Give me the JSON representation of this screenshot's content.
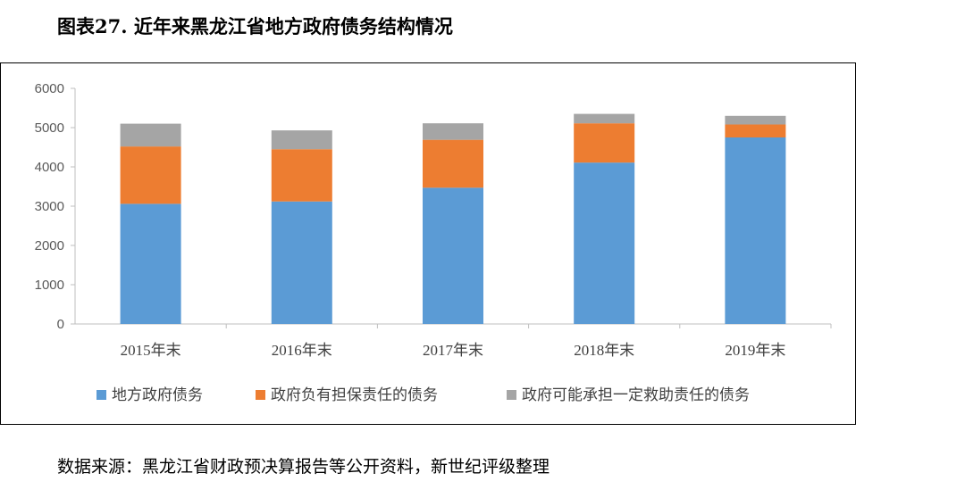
{
  "title": "图表27. 近年来黑龙江省地方政府债务结构情况",
  "source": "数据来源：黑龙江省财政预决算报告等公开资料，新世纪评级整理",
  "chart_data": {
    "type": "bar",
    "stacked": true,
    "title": "",
    "xlabel": "",
    "ylabel": "",
    "categories": [
      "2015年末",
      "2016年末",
      "2017年末",
      "2018年末",
      "2019年末"
    ],
    "ylim": [
      0,
      6000
    ],
    "yticks": [
      0,
      1000,
      2000,
      3000,
      4000,
      5000,
      6000
    ],
    "grid": false,
    "legend_position": "bottom",
    "series": [
      {
        "name": "地方政府债务",
        "color": "#5B9BD5",
        "values": [
          3060,
          3120,
          3470,
          4110,
          4750
        ]
      },
      {
        "name": "政府负有担保责任的债务",
        "color": "#ED7D31",
        "values": [
          1460,
          1330,
          1220,
          1000,
          330
        ]
      },
      {
        "name": "政府可能承担一定救助责任的债务",
        "color": "#A5A5A5",
        "values": [
          580,
          480,
          420,
          240,
          220
        ]
      }
    ]
  }
}
